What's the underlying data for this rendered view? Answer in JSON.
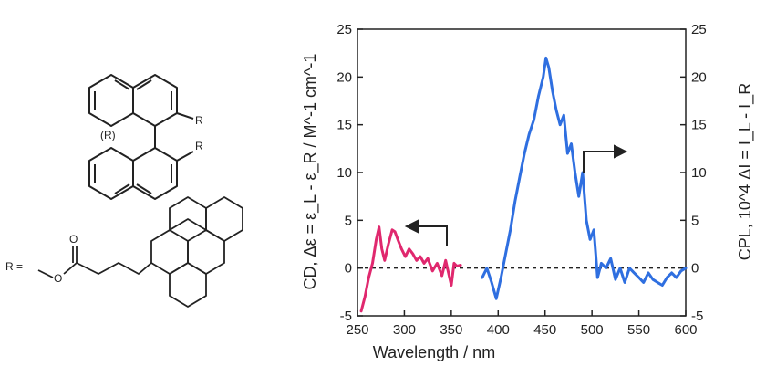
{
  "molecule": {
    "config_label": "(R)",
    "r_label_top": "R",
    "r_label_bottom": "R",
    "r_def_label": "R =",
    "oxygen_carbonyl": "O",
    "oxygen_ester": "O"
  },
  "chart_data": {
    "type": "line",
    "xlabel": "Wavelength / nm",
    "ylabel_left": "CD, Δε = ε_L - ε_R / M^-1 cm^-1",
    "ylabel_right": "CPL, 10^4 ΔI = I_L - I_R",
    "xlim": [
      250,
      600
    ],
    "ylim": [
      -5,
      25
    ],
    "x_ticks": [
      250,
      300,
      350,
      400,
      450,
      500,
      550,
      600
    ],
    "y_ticks": [
      -5,
      0,
      5,
      10,
      15,
      20,
      25
    ],
    "zero_line": "dashed",
    "colors": {
      "CD": "#e0286e",
      "CPL": "#2f6fe0"
    },
    "series": [
      {
        "name": "CD",
        "axis": "left",
        "x": [
          254,
          258,
          262,
          266,
          270,
          273,
          276,
          279,
          283,
          287,
          290,
          293,
          297,
          301,
          305,
          309,
          313,
          317,
          321,
          325,
          330,
          335,
          340,
          344,
          347,
          350,
          353,
          356,
          360
        ],
        "y": [
          -4.5,
          -3,
          -1,
          0.5,
          3,
          4.3,
          2,
          0.8,
          2.5,
          4,
          3.8,
          3,
          2,
          1.2,
          2,
          1.5,
          0.8,
          1.2,
          0.5,
          1,
          -0.3,
          0.5,
          -0.8,
          0.8,
          -0.5,
          -1.8,
          0.5,
          0.2,
          0.3
        ]
      },
      {
        "name": "CPL",
        "axis": "right",
        "x": [
          383,
          388,
          393,
          398,
          403,
          408,
          413,
          418,
          423,
          428,
          433,
          438,
          443,
          448,
          451,
          454,
          458,
          462,
          466,
          470,
          474,
          478,
          482,
          486,
          490,
          494,
          498,
          502,
          506,
          510,
          515,
          520,
          525,
          530,
          535,
          540,
          545,
          550,
          555,
          560,
          565,
          570,
          575,
          580,
          585,
          590,
          595,
          600
        ],
        "y": [
          -1,
          0,
          -1.5,
          -3.2,
          -1,
          1.5,
          4,
          7,
          9.5,
          12,
          14,
          15.5,
          18,
          20,
          22,
          21,
          18.5,
          16.5,
          15,
          16,
          12,
          13,
          10,
          7.5,
          10,
          5,
          3,
          4,
          -1,
          0.5,
          0,
          1,
          -1.2,
          0,
          -1.5,
          0,
          -0.5,
          -1,
          -1.5,
          -0.5,
          -1.2,
          -1.5,
          -1.8,
          -1,
          -0.5,
          -1,
          -0.3,
          0
        ]
      }
    ]
  }
}
